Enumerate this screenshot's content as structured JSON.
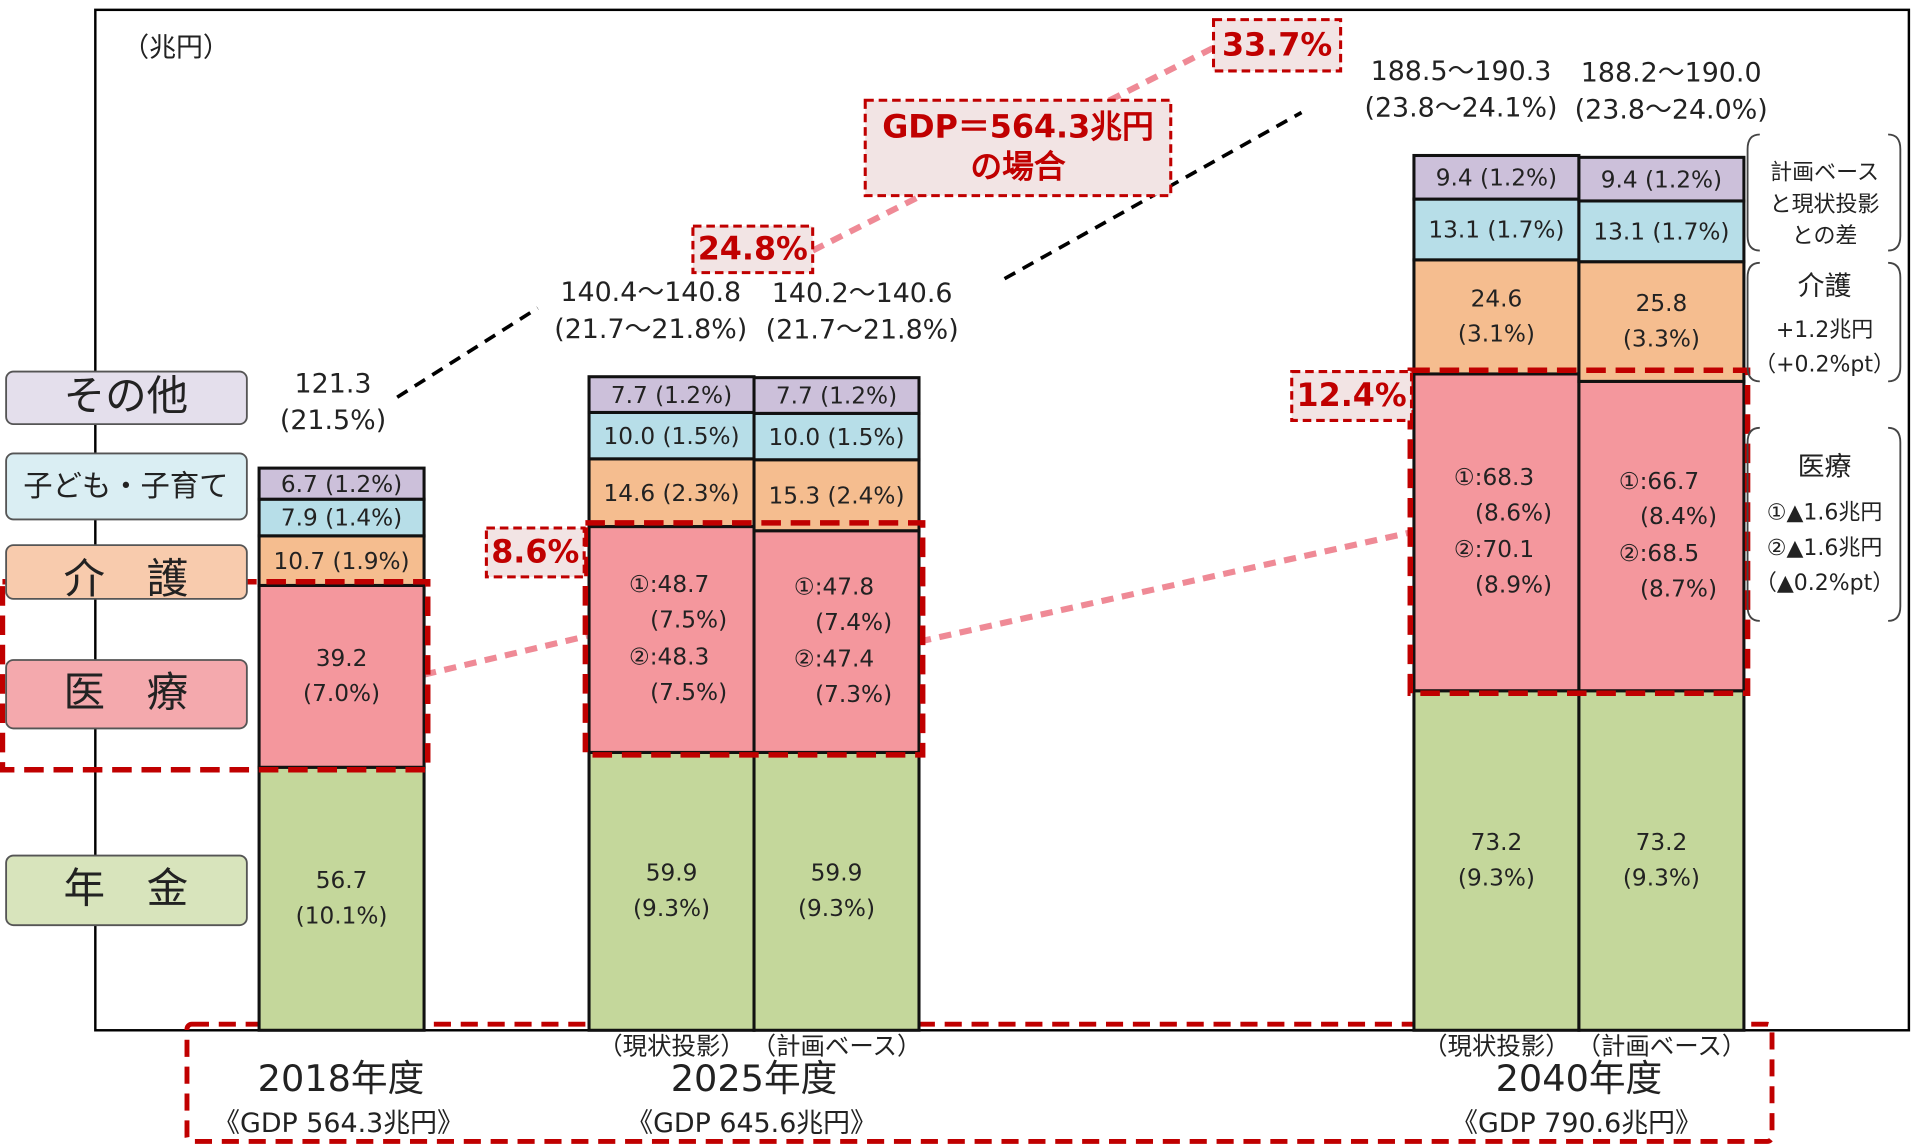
{
  "chart_data": {
    "type": "bar",
    "stacked": true,
    "y_label": "（兆円）",
    "ylim": [
      0,
      220
    ],
    "groups": [
      {
        "label": "2018年度",
        "gdp_label": "《GDP 564.3兆円》",
        "categories": [
          null
        ]
      },
      {
        "label": "2025年度",
        "gdp_label": "《GDP 645.6兆円》",
        "categories": [
          "（現状投影）",
          "（計画ベース）"
        ]
      },
      {
        "label": "2040年度",
        "gdp_label": "《GDP 790.6兆円》",
        "categories": [
          "（現状投影）",
          "（計画ベース）"
        ]
      }
    ],
    "series": [
      {
        "name": "年　金",
        "color": "#c4d79b",
        "legend_color": "#d8e4bc",
        "values": [
          56.7,
          59.9,
          59.9,
          73.2,
          73.2
        ],
        "share_labels": [
          "(10.1%)",
          "(9.3%)",
          "(9.3%)",
          "(9.3%)",
          "(9.3%)"
        ]
      },
      {
        "name": "医　療",
        "color": "#f4979d",
        "legend_color": "#f4a9ad",
        "values": [
          39.2,
          48.7,
          47.8,
          68.3,
          66.7
        ],
        "value_labels": [
          "39.2",
          "①:48.7",
          "①:47.8",
          "①:68.3",
          "①:66.7"
        ],
        "share_labels": [
          "(7.0%)",
          "(7.5%)",
          "(7.4%)",
          "(8.6%)",
          "(8.4%)"
        ],
        "alt_values": [
          null,
          48.3,
          47.4,
          70.1,
          68.5
        ],
        "alt_value_labels": [
          null,
          "②:48.3",
          "②:47.4",
          "②:70.1",
          "②:68.5"
        ],
        "alt_share_labels": [
          null,
          "(7.5%)",
          "(7.3%)",
          "(8.9%)",
          "(8.7%)"
        ]
      },
      {
        "name": "介　護",
        "color": "#f5bd8f",
        "legend_color": "#f8cbad",
        "values": [
          10.7,
          14.6,
          15.3,
          24.6,
          25.8
        ],
        "share_labels": [
          "(1.9%)",
          "(2.3%)",
          "(2.4%)",
          "(3.1%)",
          "(3.3%)"
        ]
      },
      {
        "name": "子ども・子育て",
        "color": "#b7dee8",
        "legend_color": "#daeef3",
        "values": [
          7.9,
          10.0,
          10.0,
          13.1,
          13.1
        ],
        "value_labels": [
          "7.9",
          "10.0",
          "10.0",
          "13.1",
          "13.1"
        ],
        "share_labels": [
          "(1.4%)",
          "(1.5%)",
          "(1.5%)",
          "(1.7%)",
          "(1.7%)"
        ]
      },
      {
        "name": "その他",
        "color": "#ccc0da",
        "legend_color": "#e4dfec",
        "values": [
          6.7,
          7.7,
          7.7,
          9.4,
          9.4
        ],
        "share_labels": [
          "(1.2%)",
          "(1.2%)",
          "(1.2%)",
          "(1.2%)",
          "(1.2%)"
        ]
      }
    ],
    "total_labels": [
      "121.3",
      "140.4～140.8",
      "140.2～140.6",
      "188.5～190.3",
      "188.2～190.0"
    ],
    "total_share_labels": [
      "(21.5%)",
      "(21.7～21.8%)",
      "(21.7～21.8%)",
      "(23.8～24.1%)",
      "(23.8～24.0%)"
    ],
    "annotations": {
      "medical_2025": "8.6%",
      "medical_2040": "12.4%",
      "total_2025": "24.8%",
      "total_2040": "33.7%",
      "gdp_note": [
        "GDP＝564.3兆円",
        "の場合"
      ]
    },
    "diff_notes": {
      "header": [
        "計画ベース",
        "と現状投影",
        "との差"
      ],
      "care": [
        "介護",
        "+1.2兆円",
        "（+0.2%pt）"
      ],
      "medical": [
        "医療",
        "①▲1.6兆円",
        "②▲1.6兆円",
        "（▲0.2%pt）"
      ]
    }
  }
}
